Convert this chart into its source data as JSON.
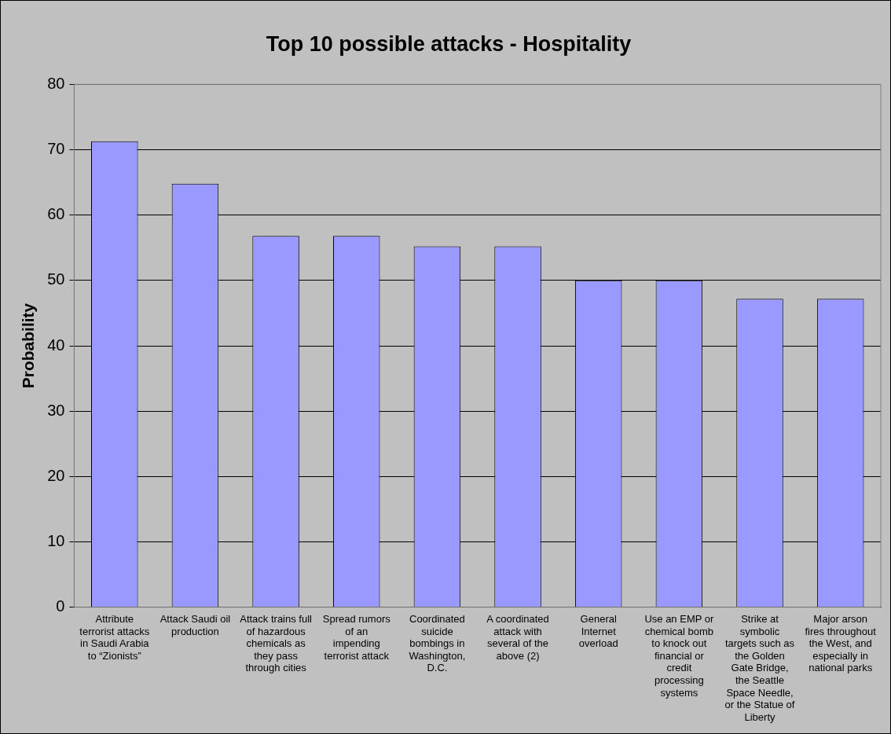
{
  "chart_data": {
    "type": "bar",
    "title": "Top 10 possible attacks - Hospitality",
    "ylabel": "Probability",
    "categories": [
      "Attribute terrorist attacks in Saudi Arabia to “Zionists”",
      "Attack Saudi oil production",
      "Attack trains full of hazardous chemicals as they pass through cities",
      "Spread rumors of an impending terrorist attack",
      "Coordinated suicide bombings in Washington, D.C.",
      "A coordinated attack with several of the above (2)",
      "General Internet overload",
      "Use an EMP or chemical bomb to knock out financial or credit processing systems",
      "Strike at symbolic targets such as the Golden Gate Bridge, the Seattle Space Needle, or the Statue of Liberty",
      "Major arson fires throughout the West, and especially in national parks"
    ],
    "values": [
      71.3,
      64.8,
      56.8,
      56.8,
      55.2,
      55.2,
      50,
      50,
      47.2,
      47.2
    ],
    "color": "#9999ff",
    "ylim": [
      0,
      80
    ],
    "yticks": [
      0,
      10,
      20,
      30,
      40,
      50,
      60,
      70,
      80
    ],
    "grid": "y",
    "legend": false
  }
}
